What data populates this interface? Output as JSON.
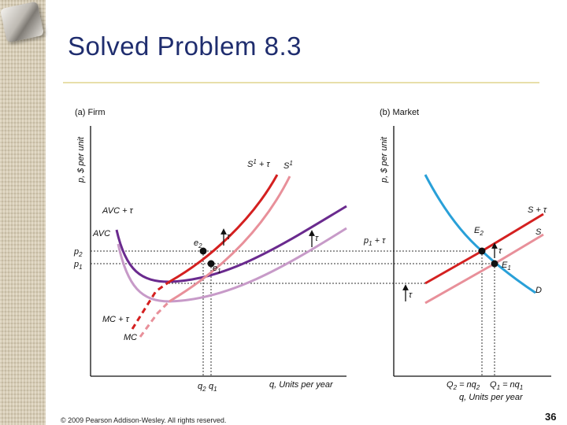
{
  "slide": {
    "title": "Solved Problem 8.3",
    "copyright": "© 2009 Pearson Addison-Wesley. All rights reserved.",
    "page_number": "36"
  },
  "colors": {
    "title": "#1f2d6e",
    "red": "#d42020",
    "pink": "#e8909a",
    "purple": "#6a2a8e",
    "lavender": "#c79ac8",
    "blue": "#29a0d8"
  },
  "firm": {
    "panel": "(a) Firm",
    "yaxis": "p, $ per unit",
    "xaxis": "q, Units per year",
    "p2": "p",
    "p2_sub": "2",
    "p1": "p",
    "p1_sub": "1",
    "q2": "q",
    "q2_sub": "2",
    "q1": "q",
    "q1_sub": "1",
    "s1_tax": "S",
    "s1_tax_sup": "1",
    "s1_tax_rest": " + τ",
    "s1": "S",
    "s1_sup": "1",
    "avc_tax": "AVC + τ",
    "avc": "AVC",
    "mc_tax": "MC + τ",
    "mc": "MC",
    "e2": "e",
    "e2_sub": "2",
    "e1": "e",
    "e1_sub": "1",
    "tau": "τ"
  },
  "market": {
    "panel": "(b) Market",
    "yaxis": "p, $ per unit",
    "p1_tax": "p",
    "p1_tax_sub": "1",
    "p1_tax_rest": " + τ",
    "s_tax": "S + τ",
    "s": "S",
    "d": "D",
    "E2": "E",
    "E2_sub": "2",
    "E1": "E",
    "E1_sub": "1",
    "tau": "τ",
    "q2_eq": "Q",
    "q2_eq_sub": "2",
    "q2_eq_rest": " = nq",
    "q2_eq_sub2": "2",
    "q1_eq": "Q",
    "q1_eq_sub": "1",
    "q1_eq_rest": " = nq",
    "q1_eq_sub2": "1",
    "xaxis": "q, Units per year"
  }
}
